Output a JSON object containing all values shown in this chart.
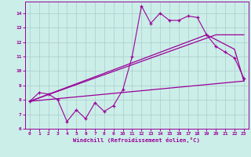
{
  "xlabel": "Windchill (Refroidissement éolien,°C)",
  "bg_color": "#cceee8",
  "line_color": "#990099",
  "grid_color": "#aacccc",
  "xlim": [
    -0.5,
    23.5
  ],
  "ylim": [
    6,
    14.8
  ],
  "yticks": [
    6,
    7,
    8,
    9,
    10,
    11,
    12,
    13,
    14
  ],
  "xticks": [
    0,
    1,
    2,
    3,
    4,
    5,
    6,
    7,
    8,
    9,
    10,
    11,
    12,
    13,
    14,
    15,
    16,
    17,
    18,
    19,
    20,
    21,
    22,
    23
  ],
  "line1_x": [
    0,
    1,
    2,
    3,
    4,
    5,
    6,
    7,
    8,
    9,
    10,
    11,
    12,
    13,
    14,
    15,
    16,
    17,
    18,
    19,
    20,
    21,
    22,
    23
  ],
  "line1_y": [
    7.9,
    8.5,
    8.4,
    8.0,
    6.5,
    7.3,
    6.7,
    7.8,
    7.2,
    7.6,
    8.7,
    11.0,
    14.5,
    13.3,
    14.0,
    13.5,
    13.5,
    13.8,
    13.7,
    12.5,
    11.7,
    11.3,
    10.9,
    9.5
  ],
  "line2_x": [
    0,
    23
  ],
  "line2_y": [
    7.9,
    9.3
  ],
  "line3_x": [
    0,
    20,
    23
  ],
  "line3_y": [
    7.9,
    12.5,
    12.5
  ],
  "line4_x": [
    0,
    19,
    22,
    23
  ],
  "line4_y": [
    7.9,
    12.5,
    11.5,
    9.3
  ]
}
